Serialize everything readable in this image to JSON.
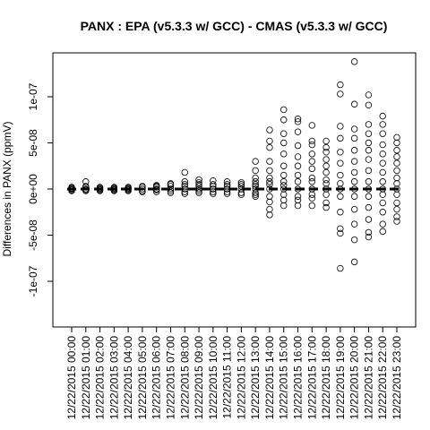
{
  "chart_data": {
    "type": "scatter",
    "title": "PANX : EPA (v5.3.3 w/ GCC) - CMAS (v5.3.3 w/ GCC)",
    "xlabel": "",
    "ylabel": "Differences in PANX (ppmV)",
    "ylim": [
      -1.5e-07,
      1.5e-07
    ],
    "yticks": [
      {
        "value": -1e-07,
        "label": "-1e-07"
      },
      {
        "value": -5e-08,
        "label": "-5e-08"
      },
      {
        "value": 0,
        "label": "0e+00"
      },
      {
        "value": 5e-08,
        "label": "5e-08"
      },
      {
        "value": 1e-07,
        "label": "1e-07"
      }
    ],
    "grid": false,
    "legend": "none",
    "zero_line": 0,
    "categories": [
      "12/22/2015 00:00",
      "12/22/2015 01:00",
      "12/22/2015 02:00",
      "12/22/2015 03:00",
      "12/22/2015 04:00",
      "12/22/2015 05:00",
      "12/22/2015 06:00",
      "12/22/2015 07:00",
      "12/22/2015 08:00",
      "12/22/2015 09:00",
      "12/22/2015 10:00",
      "12/22/2015 11:00",
      "12/22/2015 12:00",
      "12/22/2015 13:00",
      "12/22/2015 14:00",
      "12/22/2015 15:00",
      "12/22/2015 16:00",
      "12/22/2015 17:00",
      "12/22/2015 18:00",
      "12/22/2015 19:00",
      "12/22/2015 20:00",
      "12/22/2015 21:00",
      "12/22/2015 22:00",
      "12/22/2015 23:00"
    ],
    "series": [
      {
        "values": [
          [
            0,
            1e-09,
            -1e-09,
            2e-09,
            -2e-09,
            5e-10
          ],
          [
            0,
            8e-09,
            2e-09,
            -2e-09,
            3e-09,
            -1e-09
          ],
          [
            0,
            1e-09,
            -1e-09,
            2e-09,
            -2e-09
          ],
          [
            0,
            1e-09,
            -1e-09,
            2e-09,
            -2e-09
          ],
          [
            0,
            1e-09,
            -1e-09,
            2e-09,
            -2e-09
          ],
          [
            0,
            2e-09,
            -2e-09,
            3e-09,
            -3e-09
          ],
          [
            0,
            4e-09,
            -3e-09,
            2e-09,
            -1e-09,
            3e-09
          ],
          [
            0,
            5e-09,
            -4e-09,
            3e-09,
            -2e-09,
            6e-09
          ],
          [
            0,
            1.8e-08,
            -5e-09,
            5e-09,
            8e-09,
            3e-09,
            -3e-09
          ],
          [
            0,
            1e-08,
            -4e-09,
            5e-09,
            7e-09,
            -2e-09,
            3e-09
          ],
          [
            0,
            9e-09,
            -5e-09,
            5e-09,
            -3e-09,
            3e-09
          ],
          [
            0,
            8e-09,
            -5e-09,
            5e-09,
            3e-09,
            -3e-09
          ],
          [
            0,
            7e-09,
            -6e-09,
            5e-09,
            -4e-09,
            3e-09
          ],
          [
            0,
            3e-08,
            2e-08,
            1.2e-08,
            8e-09,
            -8e-09,
            5e-09,
            -4e-09,
            3e-09,
            -6e-09
          ],
          [
            0,
            6.4e-08,
            5.2e-08,
            4.5e-08,
            3e-08,
            2e-08,
            1.2e-08,
            -1.4e-08,
            -2.2e-08,
            -2.8e-08,
            8e-09,
            -8e-09,
            5e-09
          ],
          [
            0,
            8.6e-08,
            7.5e-08,
            6e-08,
            5e-08,
            3.8e-08,
            2.5e-08,
            1.5e-08,
            -1.2e-08,
            -1.8e-08,
            8e-09,
            -6e-09,
            4e-09
          ],
          [
            0,
            7.6e-08,
            7.3e-08,
            6.2e-08,
            4.7e-08,
            3.5e-08,
            2.5e-08,
            1.5e-08,
            -1.2e-08,
            -1.8e-08,
            8e-09,
            -8e-09
          ],
          [
            0,
            6.9e-08,
            5.2e-08,
            4.8e-08,
            3.8e-08,
            3e-08,
            2.2e-08,
            1.2e-08,
            -1e-08,
            -1.8e-08,
            8e-09,
            -6e-09
          ],
          [
            0,
            5.2e-08,
            4.5e-08,
            4e-08,
            3.2e-08,
            2.5e-08,
            1.8e-08,
            1e-08,
            -1.5e-08,
            -2e-08,
            6e-09,
            -6e-09
          ],
          [
            0,
            1.13e-07,
            1.03e-07,
            6.8e-08,
            5.5e-08,
            4e-08,
            2.8e-08,
            1.5e-08,
            -2.5e-08,
            -4.3e-08,
            -4.8e-08,
            -8.6e-08,
            6e-09,
            -8e-09
          ],
          [
            0,
            1.38e-07,
            9.2e-08,
            6.5e-08,
            5.5e-08,
            4.2e-08,
            3e-08,
            1.8e-08,
            -2.2e-08,
            -3.8e-08,
            -5.5e-08,
            -7.9e-08,
            8e-09,
            -8e-09
          ],
          [
            0,
            1.02e-07,
            9.1e-08,
            7e-08,
            6e-08,
            5e-08,
            4.2e-08,
            3.2e-08,
            2e-08,
            -2e-08,
            -3.3e-08,
            -4.7e-08,
            -5.2e-08,
            8e-09,
            -8e-09
          ],
          [
            0,
            7.9e-08,
            7e-08,
            6e-08,
            4.8e-08,
            3.8e-08,
            2.8e-08,
            1.8e-08,
            -1.5e-08,
            -2.5e-08,
            -3.8e-08,
            -4.6e-08,
            8e-09,
            -6e-09
          ],
          [
            0,
            5.6e-08,
            5e-08,
            4.2e-08,
            3.5e-08,
            2.8e-08,
            2e-08,
            1.2e-08,
            -1.5e-08,
            -2.2e-08,
            -3e-08,
            -3.5e-08,
            6e-09,
            -6e-09
          ]
        ]
      }
    ]
  }
}
